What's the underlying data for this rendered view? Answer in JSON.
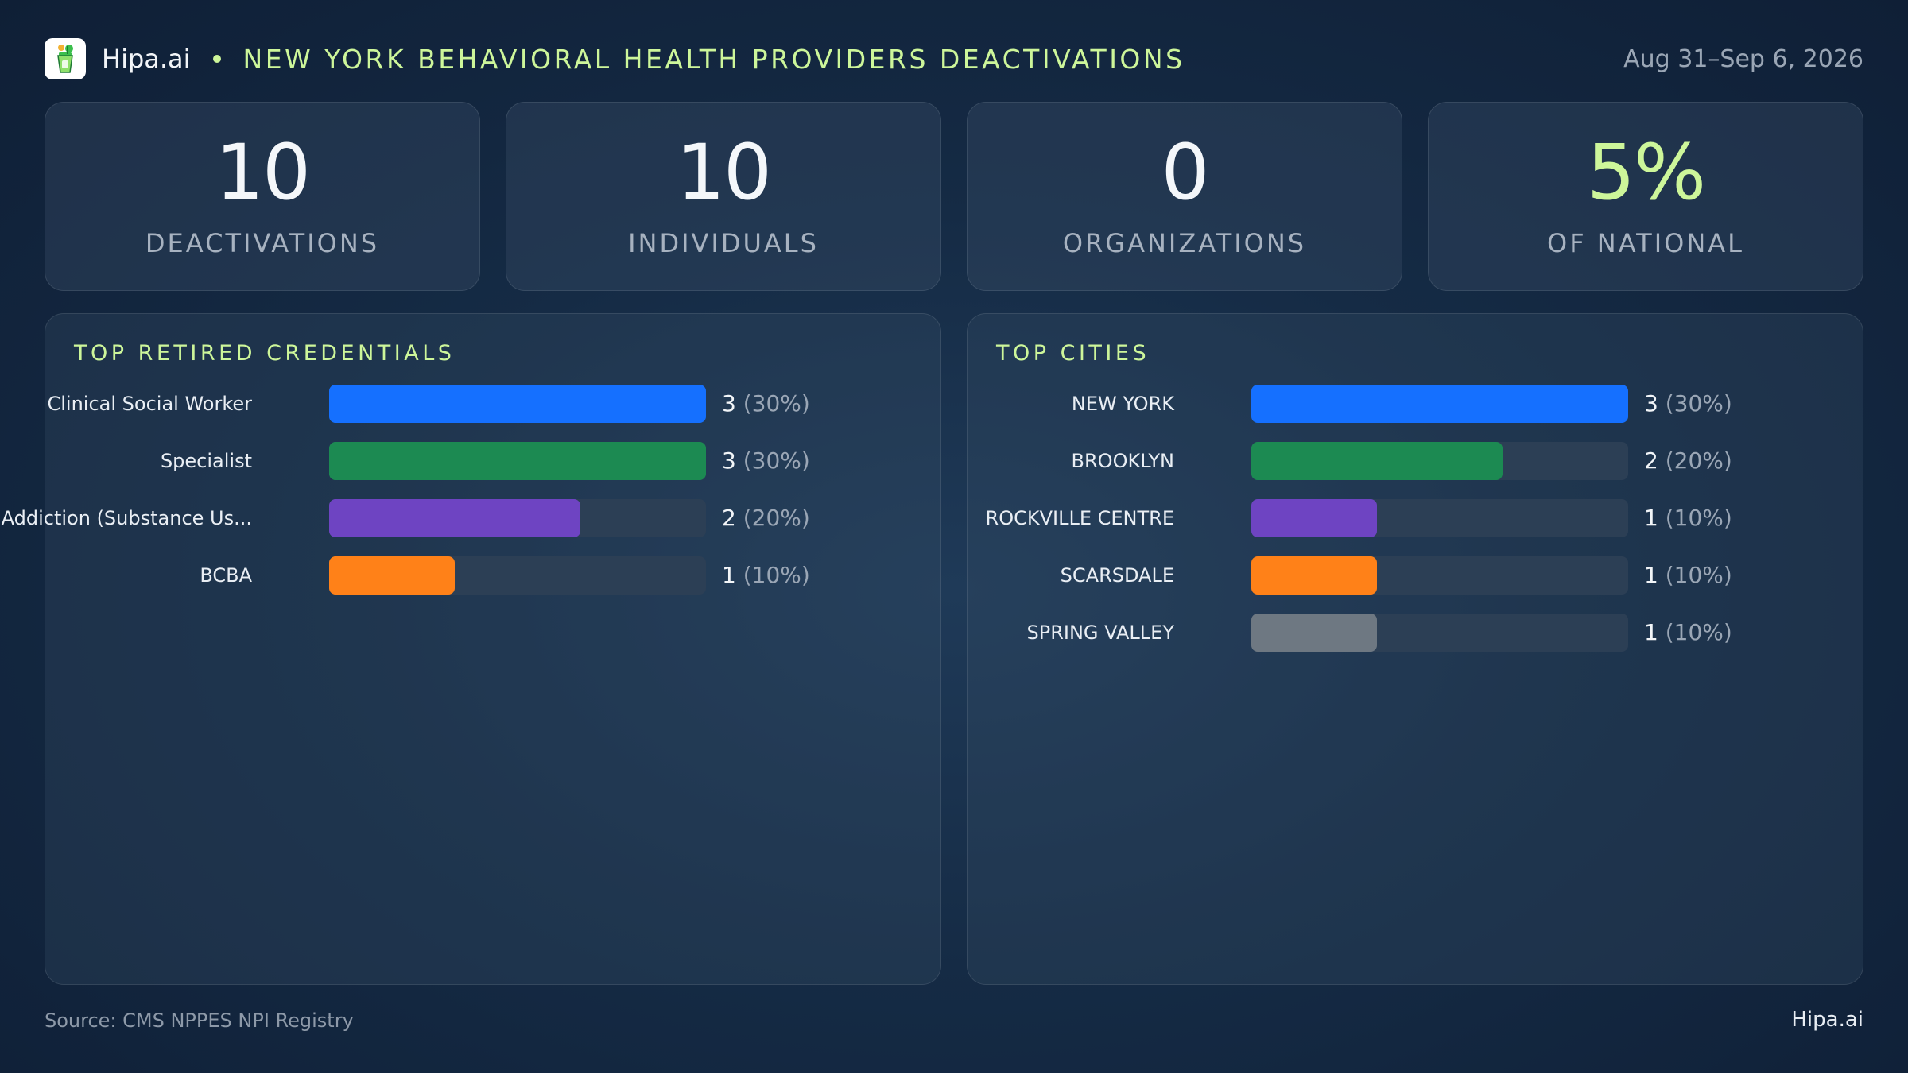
{
  "header": {
    "brand": "Hipa.ai",
    "title": "NEW YORK BEHAVIORAL HEALTH PROVIDERS DEACTIVATIONS",
    "date_range": "Aug 31–Sep 6, 2026"
  },
  "kpis": [
    {
      "value": "10",
      "label": "DEACTIVATIONS"
    },
    {
      "value": "10",
      "label": "INDIVIDUALS"
    },
    {
      "value": "0",
      "label": "ORGANIZATIONS"
    },
    {
      "value": "5%",
      "label": "OF NATIONAL"
    }
  ],
  "colors": {
    "accent": "#cdf69a",
    "blue": "#1570ff",
    "green": "#1c8a52",
    "purple": "#6e44c2",
    "orange": "#ff8118",
    "gray": "#6e7882",
    "track": "#2c3f55"
  },
  "chart_data": [
    {
      "type": "bar",
      "orientation": "horizontal",
      "title": "TOP RETIRED CREDENTIALS",
      "categories": [
        "Clinical Social Worker",
        "Specialist",
        "Addiction (Substance Us...",
        "BCBA"
      ],
      "values": [
        3,
        3,
        2,
        1
      ],
      "value_labels": [
        "3",
        "3",
        "2",
        "1"
      ],
      "percent_labels": [
        "(30%)",
        "(30%)",
        "(20%)",
        "(10%)"
      ],
      "xlim": [
        0,
        3
      ],
      "bar_colors": [
        "#1570ff",
        "#1c8a52",
        "#6e44c2",
        "#ff8118"
      ]
    },
    {
      "type": "bar",
      "orientation": "horizontal",
      "title": "TOP CITIES",
      "categories": [
        "NEW YORK",
        "BROOKLYN",
        "ROCKVILLE CENTRE",
        "SCARSDALE",
        "SPRING VALLEY"
      ],
      "values": [
        3,
        2,
        1,
        1,
        1
      ],
      "value_labels": [
        "3",
        "2",
        "1",
        "1",
        "1"
      ],
      "percent_labels": [
        "(30%)",
        "(20%)",
        "(10%)",
        "(10%)",
        "(10%)"
      ],
      "xlim": [
        0,
        3
      ],
      "bar_colors": [
        "#1570ff",
        "#1c8a52",
        "#6e44c2",
        "#ff8118",
        "#6e7882"
      ]
    }
  ],
  "footer": {
    "source": "Source: CMS NPPES NPI Registry",
    "brand": "Hipa.ai"
  }
}
